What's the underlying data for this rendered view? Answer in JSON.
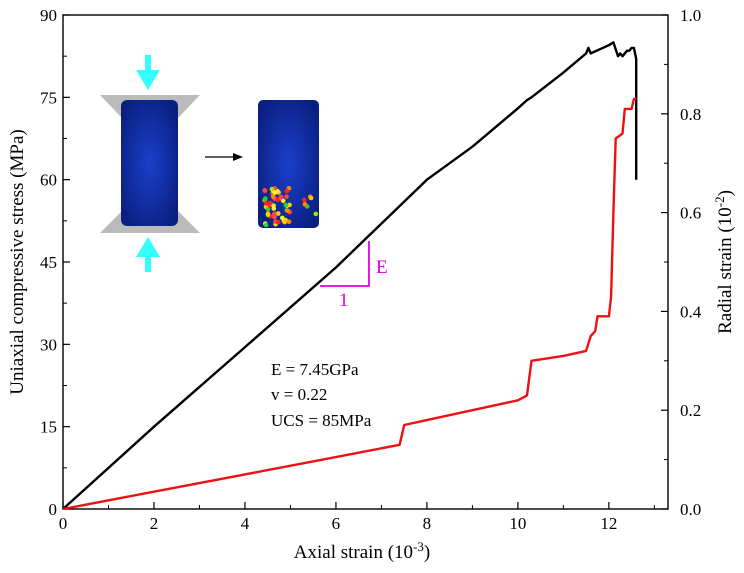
{
  "chart_data": {
    "type": "line",
    "xlabel": "Axial strain (10",
    "xlabel_exp": "-3",
    "xlabel_close": ")",
    "ylabel_left": "Uniaxial compressive stress (MPa)",
    "ylabel_right": "Radial strain (10",
    "ylabel_right_exp": "-2",
    "ylabel_right_close": ")",
    "xlim": [
      0,
      13.3
    ],
    "ylim_left": [
      0,
      90
    ],
    "ylim_right": [
      0,
      1.0
    ],
    "x_ticks": [
      0,
      2,
      4,
      6,
      8,
      10,
      12
    ],
    "x_tick_labels": [
      "0",
      "2",
      "4",
      "6",
      "8",
      "10",
      "12"
    ],
    "y_left_ticks": [
      0,
      15,
      30,
      45,
      60,
      75,
      90
    ],
    "y_left_tick_labels": [
      "0",
      "15",
      "30",
      "45",
      "60",
      "75",
      "90"
    ],
    "y_right_ticks": [
      0,
      0.2,
      0.4,
      0.6,
      0.8,
      1.0
    ],
    "y_right_tick_labels": [
      "0.0",
      "0.2",
      "0.4",
      "0.6",
      "0.8",
      "1.0"
    ],
    "grid": false,
    "series": [
      {
        "axis": "left",
        "color": "#000000",
        "x": [
          0,
          2,
          4,
          6,
          7,
          8,
          9,
          10,
          10.2,
          10.3,
          11,
          11.5,
          11.55,
          11.6,
          12.0,
          12.1,
          12.2,
          12.25,
          12.3,
          12.4,
          12.45,
          12.5,
          12.55,
          12.6,
          12.6
        ],
        "y": [
          0,
          15,
          29.5,
          44,
          52,
          60,
          66,
          73,
          74.5,
          75,
          79.5,
          83,
          84,
          83,
          84.5,
          85,
          82.5,
          83,
          82.5,
          83.5,
          83.5,
          84,
          84,
          82,
          60
        ]
      },
      {
        "axis": "right",
        "color": "#ee1111",
        "x": [
          0,
          2,
          4,
          6,
          7.4,
          7.5,
          8,
          9,
          10,
          10.2,
          10.3,
          11,
          11.5,
          11.6,
          11.7,
          11.75,
          11.8,
          12.0,
          12.05,
          12.1,
          12.15,
          12.3,
          12.35,
          12.5,
          12.55,
          12.6
        ],
        "y": [
          0,
          0.035,
          0.07,
          0.105,
          0.13,
          0.17,
          0.18,
          0.2,
          0.22,
          0.23,
          0.3,
          0.31,
          0.32,
          0.35,
          0.36,
          0.39,
          0.39,
          0.39,
          0.43,
          0.6,
          0.75,
          0.76,
          0.81,
          0.81,
          0.83,
          0.83
        ]
      }
    ],
    "annotations": {
      "modulus_label": "E",
      "run_label": "1",
      "params": [
        "E = 7.45GPa",
        "v = 0.22",
        "UCS = 85MPa"
      ]
    },
    "triangle_color": "#e000e0"
  },
  "inset": {
    "arrow_color": "#33ffff",
    "specimen_color": "#1133bb",
    "platen_color": "#bbbbbb"
  }
}
